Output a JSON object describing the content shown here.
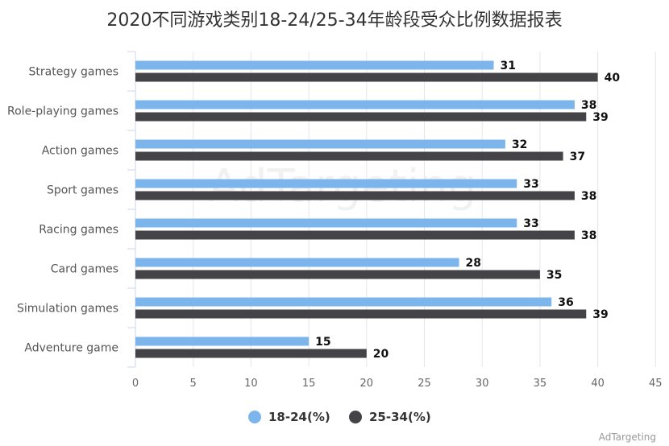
{
  "chart_data": {
    "type": "bar",
    "orientation": "horizontal",
    "title": "2020不同游戏类别18-24/25-34年龄段受众比例数据报表",
    "categories": [
      "Strategy games",
      "Role-playing games",
      "Action games",
      "Sport games",
      "Racing games",
      "Card games",
      "Simulation games",
      "Adventure game"
    ],
    "series": [
      {
        "name": "18-24(%)",
        "color": "#7cb5ec",
        "values": [
          31,
          38,
          32,
          33,
          33,
          28,
          36,
          15
        ]
      },
      {
        "name": "25-34(%)",
        "color": "#434348",
        "values": [
          40,
          39,
          37,
          38,
          38,
          35,
          39,
          20
        ]
      }
    ],
    "xlim": [
      0,
      45
    ],
    "ticks": [
      0,
      5,
      10,
      15,
      20,
      25,
      30,
      35,
      40,
      45
    ],
    "grid": true,
    "legend": "bottom-center",
    "data_labels": true
  },
  "watermark": "AdTargeting",
  "credit": "AdTargeting"
}
